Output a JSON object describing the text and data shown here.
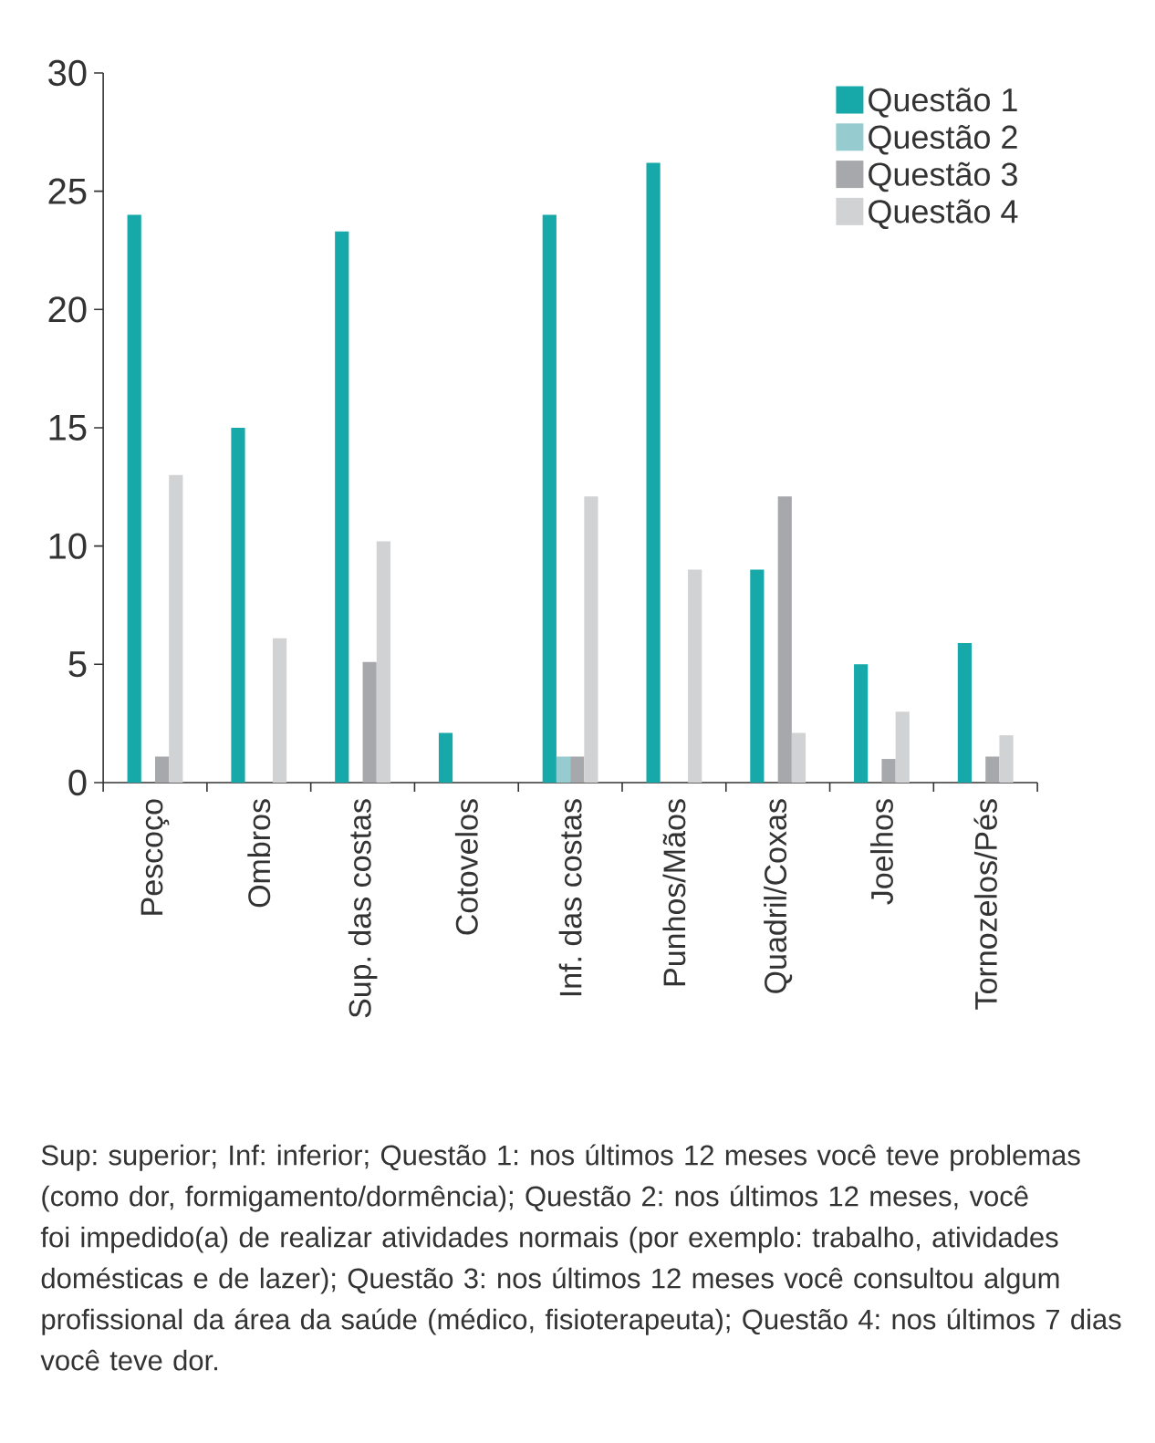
{
  "chart_data": {
    "type": "bar",
    "categories": [
      "Pescoço",
      "Ombros",
      "Sup. das costas",
      "Cotovelos",
      "Inf. das costas",
      "Punhos/Mãos",
      "Quadril/Coxas",
      "Joelhos",
      "Tornozelos/Pés"
    ],
    "series": [
      {
        "name": "Questão 1",
        "color": "#17a9a9",
        "values": [
          24,
          15,
          23.3,
          2.1,
          24,
          26.2,
          9,
          5,
          5.9
        ]
      },
      {
        "name": "Questão 2",
        "color": "#96cbcf",
        "values": [
          0,
          0,
          0,
          0,
          1.1,
          0,
          0,
          0,
          0
        ]
      },
      {
        "name": "Questão 3",
        "color": "#a7a8ab",
        "values": [
          1.1,
          0,
          5.1,
          0,
          1.1,
          0,
          12.1,
          1,
          1.1
        ]
      },
      {
        "name": "Questão 4",
        "color": "#d1d2d4",
        "values": [
          13,
          6.1,
          10.2,
          0,
          12.1,
          9,
          2.1,
          3,
          2
        ]
      }
    ],
    "ylim": [
      0,
      30
    ],
    "yticks": [
      0,
      5,
      10,
      15,
      20,
      25,
      30
    ],
    "legend": "top right",
    "annotations": [
      "Sup: superior; Inf: inferior; Questão 1: nos últimos 12 meses você teve problemas (como dor, formigamento/dormência); Questão 2: nos últimos 12 meses, você foi impedido(a) de realizar atividades normais (por exemplo: trabalho, atividades domésticas e de lazer); Questão 3: nos últimos 12 meses você consultou algum profissional da área da saúde (médico, fisioterapeuta); Questão 4: nos últimos 7 dias você teve dor."
    ]
  }
}
